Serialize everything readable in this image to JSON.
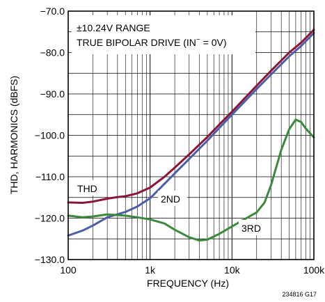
{
  "chart_data": {
    "type": "line",
    "x_scale": "log",
    "xlim": [
      100,
      100000
    ],
    "ylim": [
      -130,
      -70
    ],
    "grid": true,
    "xlabel": "FREQUENCY (Hz)",
    "ylabel": "THD, HARMONICS (dBFS)",
    "x_tick_labels": [
      {
        "value": 100,
        "label": "100"
      },
      {
        "value": 1000,
        "label": "1k"
      },
      {
        "value": 10000,
        "label": "10k"
      },
      {
        "value": 100000,
        "label": "100k"
      }
    ],
    "y_tick_labels": [
      {
        "value": -70,
        "label": "−70.0"
      },
      {
        "value": -80,
        "label": "−80.0"
      },
      {
        "value": -90,
        "label": "−90.0"
      },
      {
        "value": -100,
        "label": "−100.0"
      },
      {
        "value": -110,
        "label": "−110.0"
      },
      {
        "value": -120,
        "label": "−120.0"
      },
      {
        "value": -130,
        "label": "−130.0"
      }
    ],
    "annotations": [
      "±10.24V RANGE",
      "TRUE BIPOLAR DRIVE (IN",
      "−",
      " = 0V)"
    ],
    "series": [
      {
        "name": "THD",
        "color": "#8b1538",
        "points": [
          [
            100,
            -116.2
          ],
          [
            150,
            -116.3
          ],
          [
            200,
            -116.0
          ],
          [
            300,
            -115.3
          ],
          [
            400,
            -114.9
          ],
          [
            500,
            -114.7
          ],
          [
            700,
            -114.0
          ],
          [
            1000,
            -112.6
          ],
          [
            1500,
            -110.0
          ],
          [
            2000,
            -107.8
          ],
          [
            3000,
            -104.6
          ],
          [
            5000,
            -100.4
          ],
          [
            7000,
            -97.4
          ],
          [
            10000,
            -94.3
          ],
          [
            20000,
            -88.0
          ],
          [
            30000,
            -84.4
          ],
          [
            50000,
            -80.0
          ],
          [
            70000,
            -77.6
          ],
          [
            100000,
            -74.5
          ]
        ]
      },
      {
        "name": "2ND",
        "color": "#4a5fa8",
        "points": [
          [
            100,
            -124.2
          ],
          [
            150,
            -123.0
          ],
          [
            200,
            -121.8
          ],
          [
            300,
            -119.8
          ],
          [
            500,
            -118.5
          ],
          [
            700,
            -117.2
          ],
          [
            1000,
            -115.2
          ],
          [
            1500,
            -111.7
          ],
          [
            2000,
            -109.2
          ],
          [
            3000,
            -105.7
          ],
          [
            5000,
            -101.3
          ],
          [
            7000,
            -98.2
          ],
          [
            10000,
            -95.0
          ],
          [
            20000,
            -88.8
          ],
          [
            30000,
            -85.3
          ],
          [
            50000,
            -80.9
          ],
          [
            70000,
            -78.4
          ],
          [
            100000,
            -75.3
          ]
        ]
      },
      {
        "name": "3RD",
        "color": "#3b8a3c",
        "points": [
          [
            100,
            -119.4
          ],
          [
            150,
            -119.8
          ],
          [
            200,
            -119.6
          ],
          [
            300,
            -119.1
          ],
          [
            500,
            -119.4
          ],
          [
            700,
            -119.8
          ],
          [
            1000,
            -120.3
          ],
          [
            1500,
            -121.3
          ],
          [
            2000,
            -122.8
          ],
          [
            3000,
            -124.6
          ],
          [
            4000,
            -125.4
          ],
          [
            5000,
            -125.2
          ],
          [
            7000,
            -123.8
          ],
          [
            10000,
            -122.0
          ],
          [
            15000,
            -120.0
          ],
          [
            20000,
            -118.6
          ],
          [
            25000,
            -116.2
          ],
          [
            30000,
            -112.0
          ],
          [
            40000,
            -103.5
          ],
          [
            50000,
            -98.5
          ],
          [
            60000,
            -96.2
          ],
          [
            70000,
            -96.8
          ],
          [
            80000,
            -98.4
          ],
          [
            100000,
            -100.5
          ]
        ]
      }
    ],
    "series_labels": [
      "THD",
      "2ND",
      "3RD"
    ]
  },
  "figure_id": "234816 G17"
}
